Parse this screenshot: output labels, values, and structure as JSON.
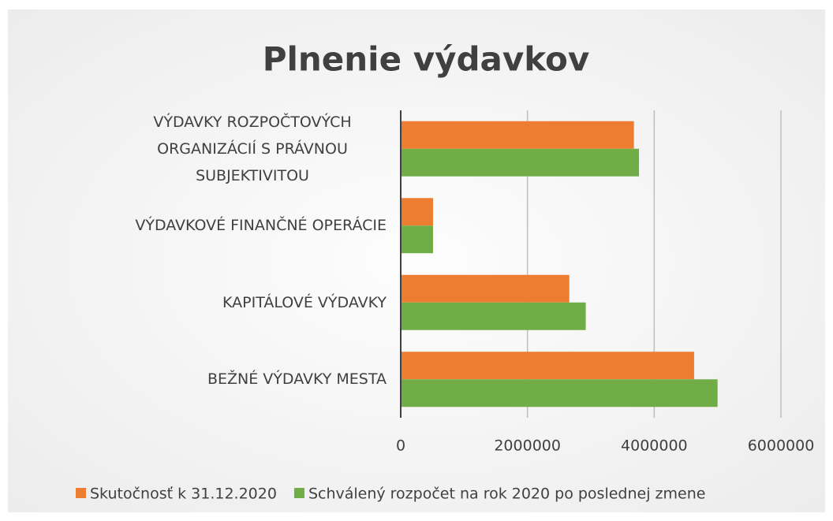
{
  "chart_data": {
    "type": "bar",
    "orientation": "horizontal",
    "title": "Plnenie výdavkov",
    "categories": [
      "VÝDAVKY ROZPOČTOVÝCH ORGANIZÁCIÍ S PRÁVNOU SUBJEKTIVITOU",
      "VÝDAVKOVÉ FINANČNÉ OPERÁCIE",
      "KAPITÁLOVÉ VÝDAVKY",
      "BEŽNÉ VÝDAVKY MESTA"
    ],
    "series": [
      {
        "name": "Skutočnosť k 31.12.2020",
        "color": "#ed7d31",
        "values": [
          3680000,
          510000,
          2660000,
          4630000
        ]
      },
      {
        "name": "Schválený rozpočet na rok 2020 po poslednej zmene",
        "color": "#70ad47",
        "values": [
          3760000,
          510000,
          2920000,
          5000000
        ]
      }
    ],
    "xlim": [
      0,
      6000000
    ],
    "xticks": [
      0,
      2000000,
      4000000,
      6000000
    ],
    "grid": true,
    "legend": "bottom"
  }
}
